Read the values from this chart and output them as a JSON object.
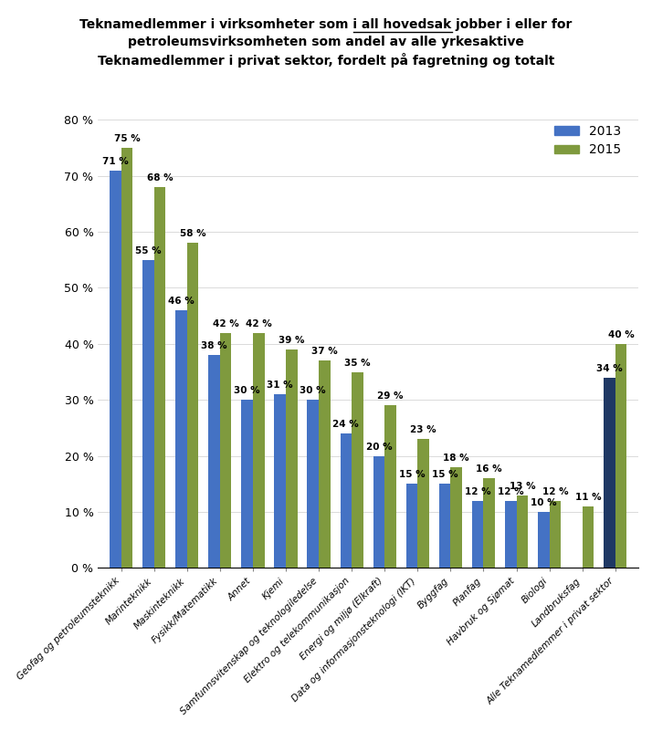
{
  "categories": [
    "Geofag og petroleumsteknikk",
    "Marinteknikk",
    "Maskinteknikk",
    "Fysikk/Matematikk",
    "Annet",
    "Kjemi",
    "Samfunnsvitenskap og teknologiledelse",
    "Elektro og telekommunikasjon",
    "Energi og miljø (Elkraft)",
    "Data og informasjonsteknologi (IKT)",
    "Byggfag",
    "Planfag",
    "Havbruk og Sjømat",
    "Biologi",
    "Landbruksfag",
    "Alle Teknamedlemmer i privat sektor"
  ],
  "values_2013": [
    71,
    55,
    46,
    38,
    30,
    31,
    30,
    24,
    20,
    15,
    15,
    12,
    12,
    10,
    0,
    34
  ],
  "values_2015": [
    75,
    68,
    58,
    42,
    42,
    39,
    37,
    35,
    29,
    23,
    18,
    16,
    13,
    12,
    11,
    40
  ],
  "labels_2013": [
    "71 %",
    "55 %",
    "46 %",
    "38 %",
    "30 %",
    "31 %",
    "30 %",
    "24 %",
    "20 %",
    "15 %",
    "15 %",
    "12 %",
    "12 %",
    "10 %",
    "",
    "34 %"
  ],
  "labels_2015": [
    "75 %",
    "68 %",
    "58 %",
    "42 %",
    "42 %",
    "39 %",
    "37 %",
    "35 %",
    "29 %",
    "23 %",
    "18 %",
    "16 %",
    "13 %",
    "12 %",
    "11 %",
    "40 %"
  ],
  "color_2013": "#4472C4",
  "color_2013_last": "#1F3864",
  "color_2015": "#7F9A3E",
  "ylim_max": 82,
  "yticks": [
    0,
    10,
    20,
    30,
    40,
    50,
    60,
    70,
    80
  ],
  "ytick_labels": [
    "0 %",
    "10 %",
    "20 %",
    "30 %",
    "40 %",
    "50 %",
    "60 %",
    "70 %",
    "80 %"
  ],
  "legend_2013": "2013",
  "legend_2015": "2015",
  "title_part1": "Teknamedlemmer i virksomheter som ",
  "title_underlined": "i all hovedsak",
  "title_part2": " jobber i eller for",
  "title_line2": "petroleumsvirksomheten som andel av alle yrkesaktive",
  "title_line3": "Teknamedlemmer i privat sektor, fordelt på fagretning og totalt",
  "bar_width": 0.35,
  "label_fontsize": 7.5,
  "axis_fontsize": 9,
  "title_fontsize": 10
}
